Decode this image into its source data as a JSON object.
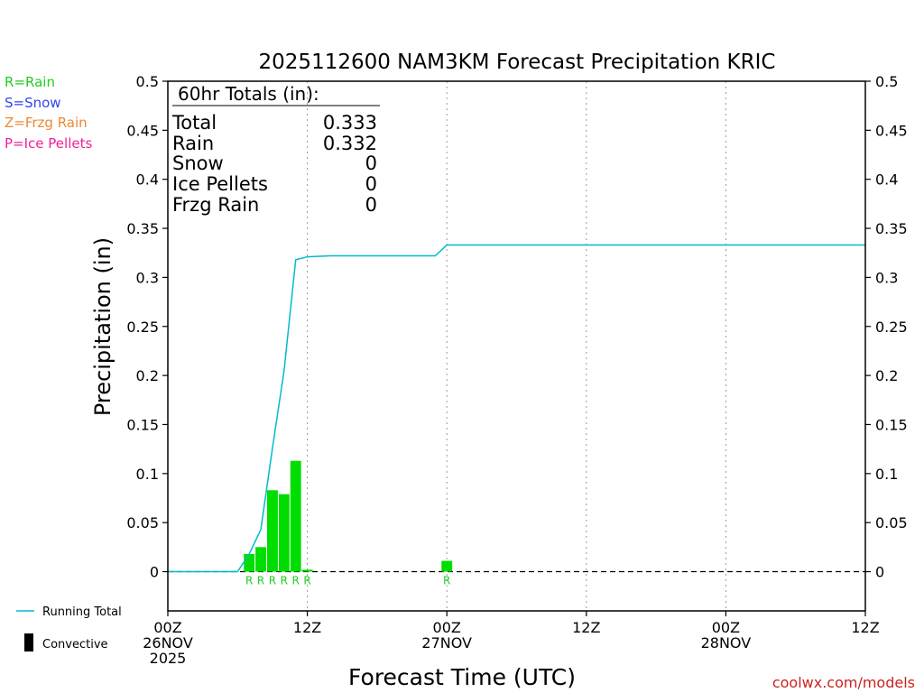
{
  "chart_data": {
    "type": "bar",
    "title": "2025112600 NAM3KM Forecast Precipitation KRIC",
    "xlabel": "Forecast Time (UTC)",
    "ylabel": "Precipitation (in)",
    "ylim": [
      -0.04,
      0.5
    ],
    "xlim_hours": [
      0,
      60
    ],
    "yticks": [
      "0",
      "0.05",
      "0.1",
      "0.15",
      "0.2",
      "0.25",
      "0.3",
      "0.35",
      "0.4",
      "0.45",
      "0.5"
    ],
    "xticks": [
      {
        "hour": 0,
        "label": "00Z",
        "date": "26NOV",
        "year": "2025"
      },
      {
        "hour": 12,
        "label": "12Z",
        "date": "",
        "year": ""
      },
      {
        "hour": 24,
        "label": "00Z",
        "date": "27NOV",
        "year": ""
      },
      {
        "hour": 36,
        "label": "12Z",
        "date": "",
        "year": ""
      },
      {
        "hour": 48,
        "label": "00Z",
        "date": "28NOV",
        "year": ""
      },
      {
        "hour": 60,
        "label": "12Z",
        "date": "",
        "year": ""
      }
    ],
    "grid": "vertical dotted",
    "legend_types": [
      {
        "label": "R=Rain",
        "color": "#22cc22"
      },
      {
        "label": "S=Snow",
        "color": "#3344ee"
      },
      {
        "label": "Z=Frzg Rain",
        "color": "#ee8833"
      },
      {
        "label": "P=Ice Pellets",
        "color": "#ee2299"
      }
    ],
    "legend_lines": [
      {
        "label": "Running Total",
        "color": "#00bbcc"
      },
      {
        "label": "Convective",
        "color": "#000000"
      }
    ],
    "totals": {
      "header": "60hr Totals (in):",
      "rows": [
        {
          "label": "Total",
          "value": "0.333"
        },
        {
          "label": "Rain",
          "value": "0.332"
        },
        {
          "label": "Snow",
          "value": "0"
        },
        {
          "label": "Ice Pellets",
          "value": "0"
        },
        {
          "label": "Frzg Rain",
          "value": "0"
        }
      ]
    },
    "bars": {
      "name": "Rain",
      "color": "#00dd00",
      "hours": [
        7,
        8,
        9,
        10,
        11,
        12,
        24
      ],
      "values": [
        0.018,
        0.025,
        0.083,
        0.079,
        0.113,
        0.002,
        0.011
      ],
      "type_labels": [
        "R",
        "R",
        "R",
        "R",
        "R",
        "R",
        "R"
      ]
    },
    "running_total": {
      "name": "Running Total",
      "color": "#00bbcc",
      "hours": [
        0,
        6,
        7,
        8,
        9,
        10,
        11,
        12,
        14,
        23,
        24,
        60
      ],
      "values": [
        0,
        0,
        0.018,
        0.043,
        0.126,
        0.205,
        0.318,
        0.321,
        0.322,
        0.322,
        0.333,
        0.333
      ]
    },
    "zero_line": "dashed"
  },
  "footer": {
    "credit": "coolwx.com/models"
  },
  "colors": {
    "rain": "#00dd00",
    "running_total": "#00bbcc",
    "credit": "#cc2222"
  }
}
